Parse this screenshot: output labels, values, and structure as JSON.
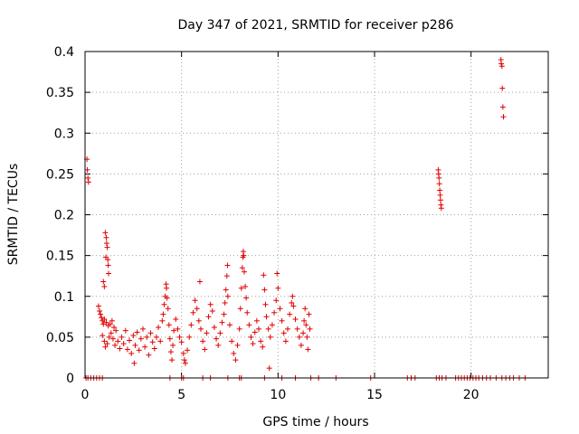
{
  "chart_data": {
    "type": "scatter",
    "title": "Day 347 of 2021, SRMTID for receiver p286",
    "xlabel": "GPS time / hours",
    "ylabel": "SRMTID / TECUs",
    "xlim": [
      0,
      24
    ],
    "ylim": [
      0,
      0.4
    ],
    "xticks": [
      0,
      5,
      10,
      15,
      20
    ],
    "xtick_labels": [
      "0",
      "5",
      "10",
      "15",
      "20"
    ],
    "yticks": [
      0,
      0.05,
      0.1,
      0.15,
      0.2,
      0.25,
      0.3,
      0.35,
      0.4
    ],
    "ytick_labels": [
      "0",
      "0.05",
      "0.1",
      "0.15",
      "0.2",
      "0.25",
      "0.3",
      "0.35",
      "0.4"
    ],
    "grid": true,
    "marker": "plus",
    "marker_color": "#e00000",
    "series": [
      {
        "name": "SRMTID",
        "points": [
          [
            0.1,
            0.268
          ],
          [
            0.12,
            0.255
          ],
          [
            0.15,
            0.245
          ],
          [
            0.18,
            0.24
          ],
          [
            18.3,
            0.255
          ],
          [
            18.32,
            0.25
          ],
          [
            18.34,
            0.245
          ],
          [
            18.36,
            0.238
          ],
          [
            18.38,
            0.23
          ],
          [
            18.4,
            0.224
          ],
          [
            18.42,
            0.218
          ],
          [
            18.44,
            0.212
          ],
          [
            18.46,
            0.208
          ],
          [
            21.55,
            0.39
          ],
          [
            21.57,
            0.385
          ],
          [
            21.6,
            0.382
          ],
          [
            21.62,
            0.355
          ],
          [
            21.65,
            0.332
          ],
          [
            21.68,
            0.32
          ],
          [
            1.05,
            0.178
          ],
          [
            1.1,
            0.172
          ],
          [
            1.12,
            0.165
          ],
          [
            1.15,
            0.16
          ],
          [
            1.08,
            0.148
          ],
          [
            1.18,
            0.145
          ],
          [
            1.2,
            0.138
          ],
          [
            1.22,
            0.128
          ],
          [
            0.95,
            0.118
          ],
          [
            1.0,
            0.112
          ],
          [
            0.7,
            0.088
          ],
          [
            0.75,
            0.082
          ],
          [
            0.8,
            0.078
          ],
          [
            0.85,
            0.074
          ],
          [
            0.9,
            0.07
          ],
          [
            0.95,
            0.066
          ],
          [
            1.0,
            0.072
          ],
          [
            1.1,
            0.068
          ],
          [
            1.2,
            0.064
          ],
          [
            1.3,
            0.066
          ],
          [
            1.4,
            0.07
          ],
          [
            1.5,
            0.062
          ],
          [
            0.9,
            0.052
          ],
          [
            1.0,
            0.045
          ],
          [
            1.05,
            0.038
          ],
          [
            1.15,
            0.042
          ],
          [
            1.25,
            0.05
          ],
          [
            1.35,
            0.055
          ],
          [
            1.45,
            0.048
          ],
          [
            1.55,
            0.04
          ],
          [
            1.6,
            0.058
          ],
          [
            1.7,
            0.045
          ],
          [
            1.8,
            0.036
          ],
          [
            1.9,
            0.05
          ],
          [
            2.0,
            0.042
          ],
          [
            2.1,
            0.058
          ],
          [
            2.2,
            0.035
          ],
          [
            2.3,
            0.046
          ],
          [
            2.4,
            0.03
          ],
          [
            2.5,
            0.052
          ],
          [
            2.55,
            0.018
          ],
          [
            2.6,
            0.04
          ],
          [
            2.7,
            0.056
          ],
          [
            2.8,
            0.034
          ],
          [
            2.9,
            0.048
          ],
          [
            3.0,
            0.06
          ],
          [
            3.1,
            0.038
          ],
          [
            3.2,
            0.05
          ],
          [
            3.3,
            0.028
          ],
          [
            3.4,
            0.055
          ],
          [
            3.5,
            0.044
          ],
          [
            3.6,
            0.036
          ],
          [
            3.7,
            0.05
          ],
          [
            3.8,
            0.062
          ],
          [
            3.9,
            0.045
          ],
          [
            4.0,
            0.07
          ],
          [
            4.05,
            0.078
          ],
          [
            4.1,
            0.09
          ],
          [
            4.15,
            0.1
          ],
          [
            4.2,
            0.115
          ],
          [
            4.22,
            0.11
          ],
          [
            4.25,
            0.098
          ],
          [
            4.3,
            0.085
          ],
          [
            4.35,
            0.065
          ],
          [
            4.4,
            0.048
          ],
          [
            4.45,
            0.032
          ],
          [
            4.5,
            0.022
          ],
          [
            4.55,
            0.04
          ],
          [
            4.6,
            0.058
          ],
          [
            4.7,
            0.072
          ],
          [
            4.8,
            0.06
          ],
          [
            4.9,
            0.05
          ],
          [
            5.0,
            0.044
          ],
          [
            5.1,
            0.03
          ],
          [
            5.15,
            0.022
          ],
          [
            5.2,
            0.018
          ],
          [
            5.3,
            0.034
          ],
          [
            5.4,
            0.05
          ],
          [
            5.5,
            0.065
          ],
          [
            5.6,
            0.08
          ],
          [
            5.7,
            0.095
          ],
          [
            5.8,
            0.085
          ],
          [
            5.9,
            0.07
          ],
          [
            5.95,
            0.118
          ],
          [
            6.0,
            0.06
          ],
          [
            6.1,
            0.045
          ],
          [
            6.2,
            0.035
          ],
          [
            6.3,
            0.055
          ],
          [
            6.4,
            0.075
          ],
          [
            6.5,
            0.09
          ],
          [
            6.6,
            0.082
          ],
          [
            6.7,
            0.062
          ],
          [
            6.8,
            0.048
          ],
          [
            6.9,
            0.04
          ],
          [
            7.0,
            0.055
          ],
          [
            7.1,
            0.068
          ],
          [
            7.2,
            0.078
          ],
          [
            7.25,
            0.092
          ],
          [
            7.3,
            0.108
          ],
          [
            7.35,
            0.125
          ],
          [
            7.38,
            0.138
          ],
          [
            7.4,
            0.1
          ],
          [
            7.5,
            0.065
          ],
          [
            7.6,
            0.045
          ],
          [
            7.7,
            0.03
          ],
          [
            7.8,
            0.022
          ],
          [
            7.9,
            0.04
          ],
          [
            8.0,
            0.06
          ],
          [
            8.05,
            0.085
          ],
          [
            8.1,
            0.11
          ],
          [
            8.15,
            0.135
          ],
          [
            8.18,
            0.148
          ],
          [
            8.2,
            0.155
          ],
          [
            8.22,
            0.15
          ],
          [
            8.25,
            0.13
          ],
          [
            8.3,
            0.112
          ],
          [
            8.35,
            0.098
          ],
          [
            8.4,
            0.08
          ],
          [
            8.5,
            0.065
          ],
          [
            8.6,
            0.05
          ],
          [
            8.7,
            0.042
          ],
          [
            8.8,
            0.056
          ],
          [
            8.9,
            0.07
          ],
          [
            9.0,
            0.06
          ],
          [
            9.1,
            0.045
          ],
          [
            9.2,
            0.038
          ],
          [
            9.25,
            0.126
          ],
          [
            9.3,
            0.108
          ],
          [
            9.35,
            0.09
          ],
          [
            9.4,
            0.075
          ],
          [
            9.5,
            0.06
          ],
          [
            9.55,
            0.012
          ],
          [
            9.6,
            0.05
          ],
          [
            9.7,
            0.065
          ],
          [
            9.8,
            0.08
          ],
          [
            9.9,
            0.095
          ],
          [
            9.95,
            0.128
          ],
          [
            10.0,
            0.11
          ],
          [
            10.1,
            0.085
          ],
          [
            10.2,
            0.07
          ],
          [
            10.3,
            0.055
          ],
          [
            10.4,
            0.045
          ],
          [
            10.5,
            0.06
          ],
          [
            10.6,
            0.078
          ],
          [
            10.7,
            0.092
          ],
          [
            10.75,
            0.1
          ],
          [
            10.8,
            0.088
          ],
          [
            10.9,
            0.072
          ],
          [
            11.0,
            0.06
          ],
          [
            11.1,
            0.05
          ],
          [
            11.2,
            0.04
          ],
          [
            11.3,
            0.055
          ],
          [
            11.35,
            0.07
          ],
          [
            11.4,
            0.085
          ],
          [
            11.45,
            0.065
          ],
          [
            11.5,
            0.05
          ],
          [
            11.55,
            0.035
          ],
          [
            11.6,
            0.078
          ],
          [
            11.65,
            0.06
          ],
          [
            0.05,
            0.0
          ],
          [
            0.15,
            0.0
          ],
          [
            0.3,
            0.0
          ],
          [
            0.45,
            0.0
          ],
          [
            0.6,
            0.0
          ],
          [
            0.75,
            0.0
          ],
          [
            0.9,
            0.0
          ],
          [
            4.4,
            0.0
          ],
          [
            5.0,
            0.0
          ],
          [
            5.1,
            0.0
          ],
          [
            6.1,
            0.0
          ],
          [
            6.5,
            0.0
          ],
          [
            7.4,
            0.0
          ],
          [
            8.0,
            0.0
          ],
          [
            8.1,
            0.0
          ],
          [
            9.3,
            0.0
          ],
          [
            10.2,
            0.0
          ],
          [
            10.9,
            0.0
          ],
          [
            11.7,
            0.0
          ],
          [
            12.1,
            0.0
          ],
          [
            13.0,
            0.0
          ],
          [
            14.8,
            0.0
          ],
          [
            16.7,
            0.0
          ],
          [
            16.9,
            0.0
          ],
          [
            17.1,
            0.0
          ],
          [
            18.2,
            0.0
          ],
          [
            18.35,
            0.0
          ],
          [
            18.5,
            0.0
          ],
          [
            18.7,
            0.0
          ],
          [
            19.2,
            0.0
          ],
          [
            19.35,
            0.0
          ],
          [
            19.5,
            0.0
          ],
          [
            19.65,
            0.0
          ],
          [
            19.8,
            0.0
          ],
          [
            19.95,
            0.0
          ],
          [
            20.1,
            0.0
          ],
          [
            20.25,
            0.0
          ],
          [
            20.4,
            0.0
          ],
          [
            20.6,
            0.0
          ],
          [
            20.8,
            0.0
          ],
          [
            21.0,
            0.0
          ],
          [
            21.3,
            0.0
          ],
          [
            21.6,
            0.0
          ],
          [
            21.8,
            0.0
          ],
          [
            22.0,
            0.0
          ],
          [
            22.2,
            0.0
          ],
          [
            22.5,
            0.0
          ],
          [
            22.8,
            0.0
          ]
        ]
      }
    ]
  }
}
